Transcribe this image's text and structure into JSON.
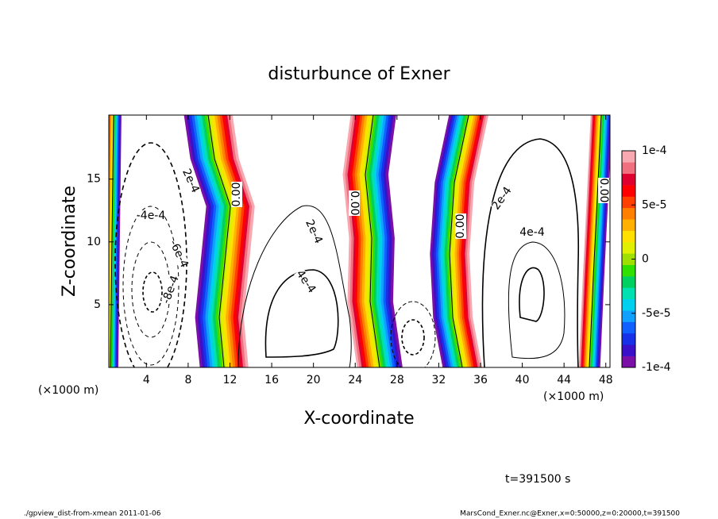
{
  "chart_data": {
    "type": "contour",
    "title": "disturbunce of Exner",
    "x_label": "X-coordinate",
    "y_label": "Z-coordinate",
    "x_unit": "(×1000 m)",
    "xlim": [
      0.4,
      48.4
    ],
    "xticks": [
      4,
      8,
      12,
      16,
      20,
      24,
      28,
      32,
      36,
      40,
      44,
      48
    ],
    "ylim": [
      0,
      20.1
    ],
    "yticks": [
      5,
      10,
      15
    ],
    "colorbar": {
      "lim": [
        -0.0001,
        0.0001
      ],
      "ticks": [
        {
          "value": 0.0001,
          "label": "1e-4"
        },
        {
          "value": 5e-05,
          "label": "5e-5"
        },
        0,
        {
          "value": -5e-05,
          "label": "-5e-5"
        },
        {
          "value": -0.0001,
          "label": "-1e-4"
        }
      ],
      "colors": [
        "#7a10a8",
        "#3a10c8",
        "#1830e8",
        "#1060ff",
        "#10a0ff",
        "#00d0f0",
        "#00e0b0",
        "#00d060",
        "#30e000",
        "#a0e000",
        "#e0f000",
        "#ffe000",
        "#ffb000",
        "#ff8000",
        "#ff4000",
        "#ff0000",
        "#e00030",
        "#f07080",
        "#f8a8b0"
      ]
    },
    "contour_labels": [
      "2e-4",
      "-4e-4",
      "-6e-4",
      "-8e-4",
      "0.00",
      "2e-4",
      "4e-4",
      "0.00",
      "0.00",
      "2e-4",
      "4e-4",
      "0.00"
    ],
    "time_label": "t=391500 s",
    "footer_left": "./gpview_dist-from-xmean  2011-01-06",
    "footer_right": "MarsCond_Exner.nc@Exner,x=0:50000,z=0:20000,t=391500"
  }
}
